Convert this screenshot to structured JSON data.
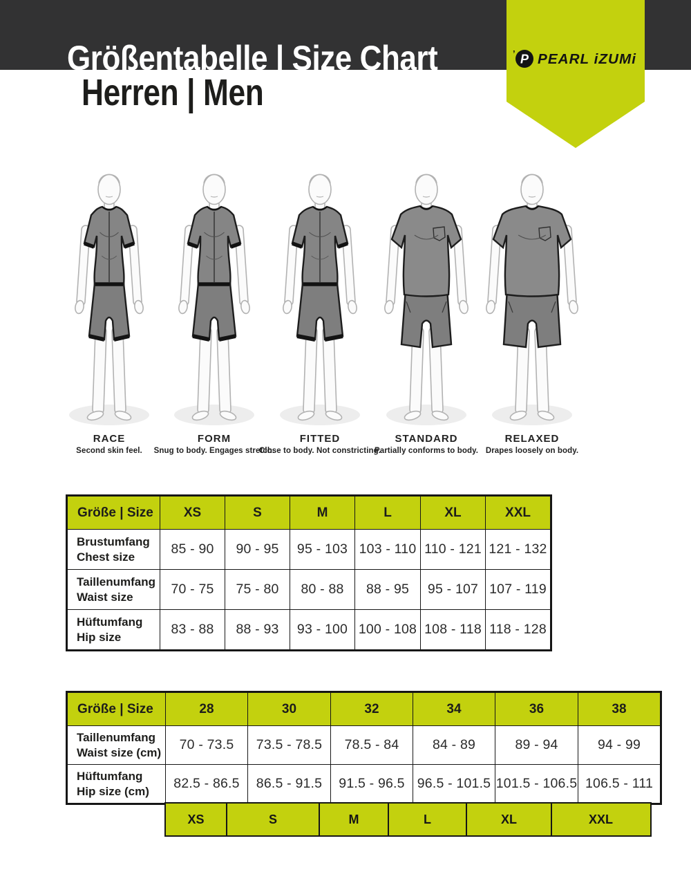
{
  "header": {
    "title": "Größentabelle | Size Chart",
    "subtitle": "Herren | Men",
    "brand": "PEARL iZUMi"
  },
  "colors": {
    "accent": "#c3d10e",
    "bar": "#323233",
    "text": "#1d1d1b"
  },
  "fit_guide": {
    "fits": [
      {
        "name": "RACE",
        "description": "Second skin feel."
      },
      {
        "name": "FORM",
        "description": "Snug to body. Engages stretch."
      },
      {
        "name": "FITTED",
        "description": "Close to body. Not constricting."
      },
      {
        "name": "STANDARD",
        "description": "Partially conforms to body."
      },
      {
        "name": "RELAXED",
        "description": "Drapes loosely on body."
      }
    ]
  },
  "letter_size_table": {
    "corner_label": "Größe | Size",
    "columns": [
      "XS",
      "S",
      "M",
      "L",
      "XL",
      "XXL"
    ],
    "rows": [
      {
        "label_de": "Brustumfang",
        "label_en": "Chest size",
        "values": [
          "85 - 90",
          "90 - 95",
          "95 - 103",
          "103 - 110",
          "110 - 121",
          "121 - 132"
        ]
      },
      {
        "label_de": "Taillenumfang",
        "label_en": "Waist size",
        "values": [
          "70 - 75",
          "75 - 80",
          "80 - 88",
          "88 - 95",
          "95 - 107",
          "107 - 119"
        ]
      },
      {
        "label_de": "Hüftumfang",
        "label_en": "Hip size",
        "values": [
          "83 - 88",
          "88 - 93",
          "93 - 100",
          "100 - 108",
          "108 - 118",
          "118 - 128"
        ]
      }
    ]
  },
  "numeric_size_table": {
    "corner_label": "Größe | Size",
    "columns": [
      "28",
      "30",
      "32",
      "34",
      "36",
      "38"
    ],
    "rows": [
      {
        "label_de": "Taillenumfang",
        "label_en": "Waist size (cm)",
        "values": [
          "70 - 73.5",
          "73.5 - 78.5",
          "78.5 - 84",
          "84 - 89",
          "89 - 94",
          "94 - 99"
        ]
      },
      {
        "label_de": "Hüftumfang",
        "label_en": "Hip size (cm)",
        "values": [
          "82.5 - 86.5",
          "86.5 - 91.5",
          "91.5 - 96.5",
          "96.5 - 101.5",
          "101.5 - 106.5",
          "106.5 - 111"
        ]
      }
    ],
    "letter_mapping": [
      "XS",
      "S",
      "M",
      "L",
      "XL",
      "XXL"
    ]
  }
}
